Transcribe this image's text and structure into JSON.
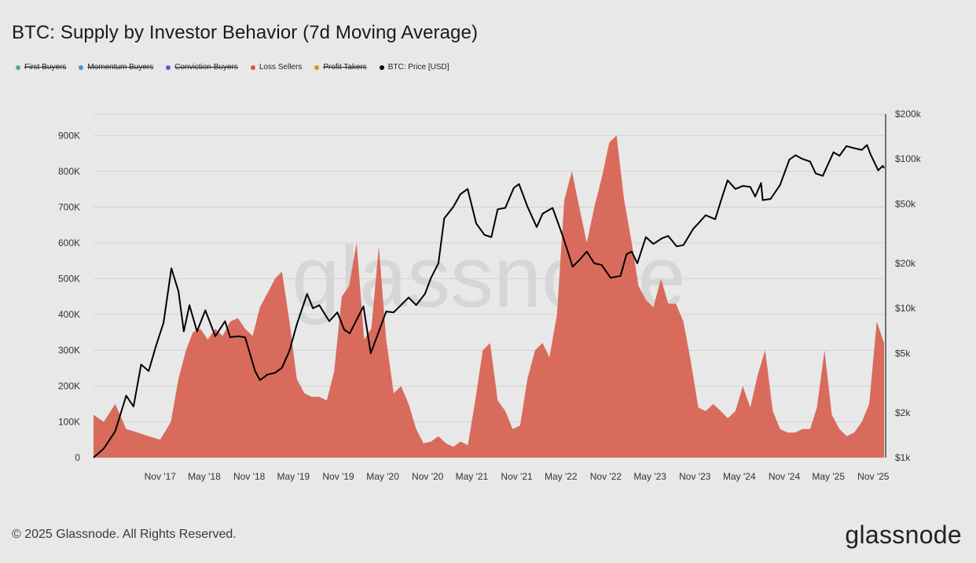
{
  "title": "BTC: Supply by Investor Behavior (7d Moving Average)",
  "legend": [
    {
      "label": "First Buyers",
      "color": "#5aa972",
      "active": false
    },
    {
      "label": "Momentum Buyers",
      "color": "#4a90d9",
      "active": false
    },
    {
      "label": "Conviction Buyers",
      "color": "#6a4fd0",
      "active": false
    },
    {
      "label": "Loss Sellers",
      "color": "#d45845",
      "active": true
    },
    {
      "label": "Profit Takers",
      "color": "#d9922e",
      "active": false
    },
    {
      "label": "BTC: Price [USD]",
      "color": "#000000",
      "active": true
    }
  ],
  "watermark": "glassnode",
  "footer": {
    "copyright": "© 2025 Glassnode. All Rights Reserved.",
    "logo": "glassnode"
  },
  "chart_data": {
    "type": "area",
    "title": "BTC: Supply by Investor Behavior (7d Moving Average)",
    "x_range": [
      "2017-02-01",
      "2025-12-15"
    ],
    "x_tick_labels": [
      "Nov '17",
      "May '18",
      "Nov '18",
      "May '19",
      "Nov '19",
      "May '20",
      "Nov '20",
      "May '21",
      "Nov '21",
      "May '22",
      "Nov '22",
      "May '23",
      "Nov '23",
      "May '24",
      "Nov '24",
      "May '25",
      "Nov '25"
    ],
    "x_tick_dates": [
      "2017-11-01",
      "2018-05-01",
      "2018-11-01",
      "2019-05-01",
      "2019-11-01",
      "2020-05-01",
      "2020-11-01",
      "2021-05-01",
      "2021-11-01",
      "2022-05-01",
      "2022-11-01",
      "2023-05-01",
      "2023-11-01",
      "2024-05-01",
      "2024-11-01",
      "2025-05-01",
      "2025-11-01"
    ],
    "y_left": {
      "min": 0,
      "max": 960000,
      "ticks": [
        0,
        100000,
        200000,
        300000,
        400000,
        500000,
        600000,
        700000,
        800000,
        900000
      ],
      "tick_labels": [
        "0",
        "100K",
        "200K",
        "300K",
        "400K",
        "500K",
        "600K",
        "700K",
        "800K",
        "900K"
      ]
    },
    "y_right": {
      "scale": "log",
      "min": 1000,
      "max": 200000,
      "ticks": [
        1000,
        2000,
        5000,
        10000,
        20000,
        50000,
        100000,
        200000
      ],
      "tick_labels": [
        "$1k",
        "$2k",
        "$5k",
        "$10k",
        "$20k",
        "$50k",
        "$100k",
        "$200k"
      ]
    },
    "grid": true,
    "legend_position": "top-left",
    "series": [
      {
        "name": "Loss Sellers",
        "axis": "left",
        "color": "#d96b5c",
        "points": [
          [
            "2017-02-01",
            120000
          ],
          [
            "2017-03-15",
            100000
          ],
          [
            "2017-05-01",
            150000
          ],
          [
            "2017-06-15",
            80000
          ],
          [
            "2017-08-01",
            70000
          ],
          [
            "2017-09-15",
            60000
          ],
          [
            "2017-11-01",
            50000
          ],
          [
            "2017-12-15",
            100000
          ],
          [
            "2018-01-15",
            220000
          ],
          [
            "2018-02-15",
            300000
          ],
          [
            "2018-03-15",
            350000
          ],
          [
            "2018-04-15",
            360000
          ],
          [
            "2018-05-15",
            330000
          ],
          [
            "2018-06-15",
            360000
          ],
          [
            "2018-07-15",
            340000
          ],
          [
            "2018-08-15",
            380000
          ],
          [
            "2018-09-15",
            390000
          ],
          [
            "2018-10-15",
            360000
          ],
          [
            "2018-11-15",
            340000
          ],
          [
            "2018-12-15",
            420000
          ],
          [
            "2019-01-15",
            460000
          ],
          [
            "2019-02-15",
            500000
          ],
          [
            "2019-03-15",
            520000
          ],
          [
            "2019-04-15",
            380000
          ],
          [
            "2019-05-15",
            220000
          ],
          [
            "2019-06-15",
            180000
          ],
          [
            "2019-07-15",
            170000
          ],
          [
            "2019-08-15",
            170000
          ],
          [
            "2019-09-15",
            160000
          ],
          [
            "2019-10-15",
            240000
          ],
          [
            "2019-11-15",
            450000
          ],
          [
            "2019-12-15",
            480000
          ],
          [
            "2020-01-15",
            600000
          ],
          [
            "2020-02-15",
            330000
          ],
          [
            "2020-03-15",
            360000
          ],
          [
            "2020-04-15",
            590000
          ],
          [
            "2020-05-15",
            330000
          ],
          [
            "2020-06-15",
            180000
          ],
          [
            "2020-07-15",
            200000
          ],
          [
            "2020-08-15",
            150000
          ],
          [
            "2020-09-15",
            80000
          ],
          [
            "2020-10-15",
            40000
          ],
          [
            "2020-11-15",
            45000
          ],
          [
            "2020-12-15",
            60000
          ],
          [
            "2021-01-15",
            40000
          ],
          [
            "2021-02-15",
            30000
          ],
          [
            "2021-03-15",
            45000
          ],
          [
            "2021-04-15",
            35000
          ],
          [
            "2021-05-15",
            160000
          ],
          [
            "2021-06-15",
            300000
          ],
          [
            "2021-07-15",
            320000
          ],
          [
            "2021-08-15",
            160000
          ],
          [
            "2021-09-15",
            130000
          ],
          [
            "2021-10-15",
            80000
          ],
          [
            "2021-11-15",
            90000
          ],
          [
            "2021-12-15",
            220000
          ],
          [
            "2022-01-15",
            300000
          ],
          [
            "2022-02-15",
            320000
          ],
          [
            "2022-03-15",
            280000
          ],
          [
            "2022-04-15",
            400000
          ],
          [
            "2022-05-15",
            720000
          ],
          [
            "2022-06-15",
            800000
          ],
          [
            "2022-07-15",
            700000
          ],
          [
            "2022-08-15",
            600000
          ],
          [
            "2022-09-15",
            700000
          ],
          [
            "2022-10-15",
            780000
          ],
          [
            "2022-11-15",
            880000
          ],
          [
            "2022-12-15",
            900000
          ],
          [
            "2023-01-15",
            720000
          ],
          [
            "2023-02-15",
            600000
          ],
          [
            "2023-03-15",
            480000
          ],
          [
            "2023-04-15",
            440000
          ],
          [
            "2023-05-15",
            420000
          ],
          [
            "2023-06-15",
            500000
          ],
          [
            "2023-07-15",
            430000
          ],
          [
            "2023-08-15",
            430000
          ],
          [
            "2023-09-15",
            380000
          ],
          [
            "2023-10-15",
            270000
          ],
          [
            "2023-11-15",
            140000
          ],
          [
            "2023-12-15",
            130000
          ],
          [
            "2024-01-15",
            150000
          ],
          [
            "2024-02-15",
            130000
          ],
          [
            "2024-03-15",
            110000
          ],
          [
            "2024-04-15",
            130000
          ],
          [
            "2024-05-15",
            200000
          ],
          [
            "2024-06-15",
            140000
          ],
          [
            "2024-07-15",
            230000
          ],
          [
            "2024-08-15",
            300000
          ],
          [
            "2024-09-15",
            130000
          ],
          [
            "2024-10-15",
            80000
          ],
          [
            "2024-11-15",
            70000
          ],
          [
            "2024-12-15",
            70000
          ],
          [
            "2025-01-15",
            80000
          ],
          [
            "2025-02-15",
            80000
          ],
          [
            "2025-03-15",
            140000
          ],
          [
            "2025-04-15",
            300000
          ],
          [
            "2025-05-15",
            120000
          ],
          [
            "2025-06-15",
            80000
          ],
          [
            "2025-07-15",
            60000
          ],
          [
            "2025-08-15",
            70000
          ],
          [
            "2025-09-15",
            100000
          ],
          [
            "2025-10-15",
            150000
          ],
          [
            "2025-11-15",
            380000
          ],
          [
            "2025-12-15",
            320000
          ]
        ]
      },
      {
        "name": "BTC: Price [USD]",
        "axis": "right",
        "color": "#000000",
        "points": [
          [
            "2017-02-01",
            1000
          ],
          [
            "2017-03-15",
            1150
          ],
          [
            "2017-05-01",
            1500
          ],
          [
            "2017-06-15",
            2600
          ],
          [
            "2017-07-15",
            2200
          ],
          [
            "2017-08-15",
            4200
          ],
          [
            "2017-09-15",
            3800
          ],
          [
            "2017-10-15",
            5600
          ],
          [
            "2017-11-15",
            8000
          ],
          [
            "2017-12-17",
            18500
          ],
          [
            "2018-01-15",
            13000
          ],
          [
            "2018-02-06",
            7000
          ],
          [
            "2018-03-01",
            10500
          ],
          [
            "2018-04-01",
            7000
          ],
          [
            "2018-05-05",
            9700
          ],
          [
            "2018-06-15",
            6500
          ],
          [
            "2018-07-25",
            8200
          ],
          [
            "2018-08-15",
            6400
          ],
          [
            "2018-09-15",
            6500
          ],
          [
            "2018-10-15",
            6400
          ],
          [
            "2018-11-25",
            3800
          ],
          [
            "2018-12-15",
            3300
          ],
          [
            "2019-01-15",
            3600
          ],
          [
            "2019-02-15",
            3700
          ],
          [
            "2019-03-15",
            4000
          ],
          [
            "2019-04-15",
            5200
          ],
          [
            "2019-05-15",
            7800
          ],
          [
            "2019-06-26",
            12500
          ],
          [
            "2019-07-20",
            10000
          ],
          [
            "2019-08-15",
            10500
          ],
          [
            "2019-09-25",
            8200
          ],
          [
            "2019-10-28",
            9400
          ],
          [
            "2019-11-25",
            7200
          ],
          [
            "2019-12-18",
            6800
          ],
          [
            "2020-02-12",
            10300
          ],
          [
            "2020-03-13",
            5000
          ],
          [
            "2020-04-15",
            7000
          ],
          [
            "2020-05-15",
            9500
          ],
          [
            "2020-06-15",
            9400
          ],
          [
            "2020-07-27",
            11000
          ],
          [
            "2020-08-15",
            11800
          ],
          [
            "2020-09-15",
            10500
          ],
          [
            "2020-10-21",
            12500
          ],
          [
            "2020-11-15",
            16000
          ],
          [
            "2020-12-15",
            20000
          ],
          [
            "2021-01-08",
            40000
          ],
          [
            "2021-02-15",
            48000
          ],
          [
            "2021-03-15",
            58000
          ],
          [
            "2021-04-14",
            63000
          ],
          [
            "2021-05-19",
            37000
          ],
          [
            "2021-06-22",
            31000
          ],
          [
            "2021-07-20",
            30000
          ],
          [
            "2021-08-15",
            46000
          ],
          [
            "2021-09-15",
            47000
          ],
          [
            "2021-10-20",
            64000
          ],
          [
            "2021-11-10",
            68000
          ],
          [
            "2021-12-15",
            48000
          ],
          [
            "2022-01-22",
            35000
          ],
          [
            "2022-02-15",
            43000
          ],
          [
            "2022-03-28",
            47000
          ],
          [
            "2022-05-10",
            30000
          ],
          [
            "2022-06-18",
            19000
          ],
          [
            "2022-07-15",
            21000
          ],
          [
            "2022-08-15",
            24000
          ],
          [
            "2022-09-15",
            20000
          ],
          [
            "2022-10-15",
            19500
          ],
          [
            "2022-11-21",
            16000
          ],
          [
            "2022-12-31",
            16500
          ],
          [
            "2023-01-25",
            23000
          ],
          [
            "2023-02-15",
            24000
          ],
          [
            "2023-03-10",
            20000
          ],
          [
            "2023-04-14",
            30000
          ],
          [
            "2023-05-15",
            27000
          ],
          [
            "2023-06-20",
            29500
          ],
          [
            "2023-07-15",
            30500
          ],
          [
            "2023-08-18",
            26000
          ],
          [
            "2023-09-15",
            26500
          ],
          [
            "2023-10-25",
            34000
          ],
          [
            "2023-11-15",
            37000
          ],
          [
            "2023-12-15",
            42000
          ],
          [
            "2024-01-23",
            39500
          ],
          [
            "2024-02-15",
            52000
          ],
          [
            "2024-03-14",
            72000
          ],
          [
            "2024-04-15",
            63000
          ],
          [
            "2024-05-15",
            66000
          ],
          [
            "2024-06-15",
            65000
          ],
          [
            "2024-07-05",
            56000
          ],
          [
            "2024-07-29",
            69000
          ],
          [
            "2024-08-05",
            53000
          ],
          [
            "2024-09-06",
            54000
          ],
          [
            "2024-10-15",
            67000
          ],
          [
            "2024-11-22",
            99000
          ],
          [
            "2024-12-17",
            106000
          ],
          [
            "2025-01-15",
            100000
          ],
          [
            "2025-02-15",
            96000
          ],
          [
            "2025-03-10",
            80000
          ],
          [
            "2025-04-08",
            77000
          ],
          [
            "2025-05-22",
            111000
          ],
          [
            "2025-06-15",
            105000
          ],
          [
            "2025-07-14",
            122000
          ],
          [
            "2025-08-15",
            118000
          ],
          [
            "2025-09-15",
            115000
          ],
          [
            "2025-10-06",
            124000
          ],
          [
            "2025-10-20",
            108000
          ],
          [
            "2025-11-21",
            84000
          ],
          [
            "2025-12-10",
            90000
          ],
          [
            "2025-12-15",
            87000
          ]
        ]
      }
    ]
  }
}
